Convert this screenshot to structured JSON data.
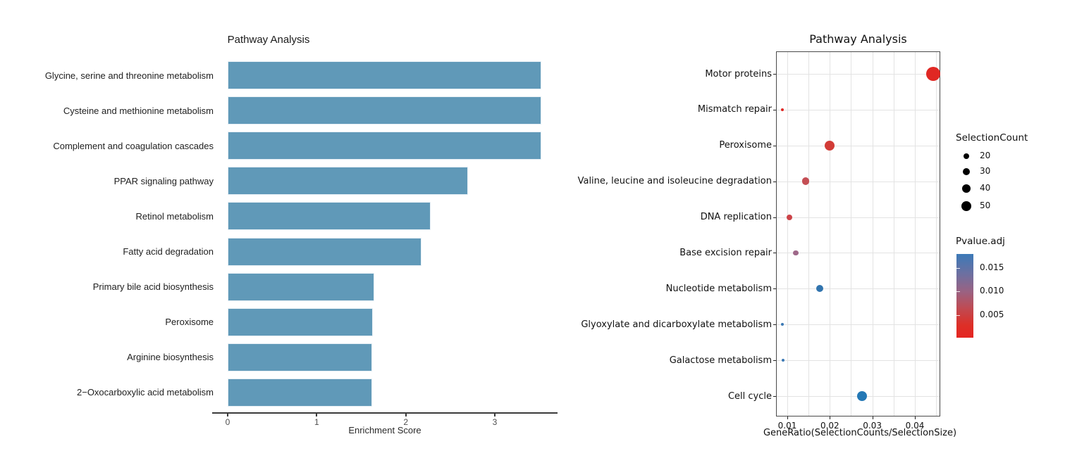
{
  "background": "#ffffff",
  "chart_data": [
    {
      "type": "bar",
      "orientation": "horizontal",
      "title": "Pathway Analysis",
      "xlabel": "Enrichment Score",
      "categories": [
        "Glycine, serine and threonine metabolism",
        "Cysteine and methionine metabolism",
        "Complement and coagulation cascades",
        "PPAR signaling pathway",
        "Retinol metabolism",
        "Fatty acid degradation",
        "Primary bile acid biosynthesis",
        "Peroxisome",
        "Arginine biosynthesis",
        "2−Oxocarboxylic acid metabolism"
      ],
      "values": [
        3.52,
        3.52,
        3.52,
        2.7,
        2.28,
        2.18,
        1.65,
        1.63,
        1.62,
        1.62
      ],
      "xticks": [
        0,
        1,
        2,
        3
      ],
      "xlim": [
        -0.18,
        3.7
      ],
      "bar_color": "#6099b8",
      "grid": false
    },
    {
      "type": "scatter",
      "title": "Pathway Analysis",
      "xlabel": "GeneRatio(SelectionCounts/SelectionSize)",
      "categories": [
        "Motor proteins",
        "Mismatch repair",
        "Peroxisome",
        "Valine, leucine and isoleucine degradation",
        "DNA replication",
        "Base excision repair",
        "Nucleotide metabolism",
        "Glyoxylate and dicarboxylate metabolism",
        "Galactose metabolism",
        "Cell cycle"
      ],
      "points": [
        {
          "category": "Motor proteins",
          "gene_ratio": 0.0443,
          "selection_count": 100,
          "pvalue_adj": 0.0005,
          "color": "#e02723"
        },
        {
          "category": "Mismatch repair",
          "gene_ratio": 0.0088,
          "selection_count": 5,
          "pvalue_adj": 0.0008,
          "color": "#e02723"
        },
        {
          "category": "Peroxisome",
          "gene_ratio": 0.0199,
          "selection_count": 52,
          "pvalue_adj": 0.003,
          "color": "#d23c37"
        },
        {
          "category": "Valine, leucine and isoleucine degradation",
          "gene_ratio": 0.0143,
          "selection_count": 28,
          "pvalue_adj": 0.0055,
          "color": "#c44e54"
        },
        {
          "category": "DNA replication",
          "gene_ratio": 0.0105,
          "selection_count": 16,
          "pvalue_adj": 0.004,
          "color": "#cc4348"
        },
        {
          "category": "Base excision repair",
          "gene_ratio": 0.012,
          "selection_count": 14,
          "pvalue_adj": 0.01,
          "color": "#9e6889"
        },
        {
          "category": "Nucleotide metabolism",
          "gene_ratio": 0.0176,
          "selection_count": 25,
          "pvalue_adj": 0.0165,
          "color": "#3174ae"
        },
        {
          "category": "Glyoxylate and dicarboxylate metabolism",
          "gene_ratio": 0.0088,
          "selection_count": 4,
          "pvalue_adj": 0.015,
          "color": "#3b79b5"
        },
        {
          "category": "Galactose metabolism",
          "gene_ratio": 0.009,
          "selection_count": 4,
          "pvalue_adj": 0.015,
          "color": "#3b79b5"
        },
        {
          "category": "Cell cycle",
          "gene_ratio": 0.0276,
          "selection_count": 53,
          "pvalue_adj": 0.017,
          "color": "#2478b5"
        }
      ],
      "xticks": [
        "0.01",
        "0.02",
        "0.03",
        "0.04"
      ],
      "grid_xticks": [
        0.01,
        0.015,
        0.02,
        0.025,
        0.03,
        0.035,
        0.04,
        0.045
      ],
      "xlim": [
        0.0073,
        0.046
      ],
      "grid": true,
      "legend_size": {
        "title": "SelectionCount",
        "entries": [
          "20",
          "30",
          "40",
          "50"
        ]
      },
      "legend_color": {
        "title": "Pvalue.adj",
        "ticks": [
          "0.015",
          "0.010",
          "0.005"
        ],
        "tick_values": [
          0.015,
          0.01,
          0.005
        ],
        "range": [
          0.0003,
          0.0179
        ],
        "gradient": [
          "#3c7ab8 0%",
          "#6f6f9f 25%",
          "#9a6282 45%",
          "#c04a52 65%",
          "#dd2f27 85%",
          "#e52521 100%"
        ]
      }
    }
  ]
}
